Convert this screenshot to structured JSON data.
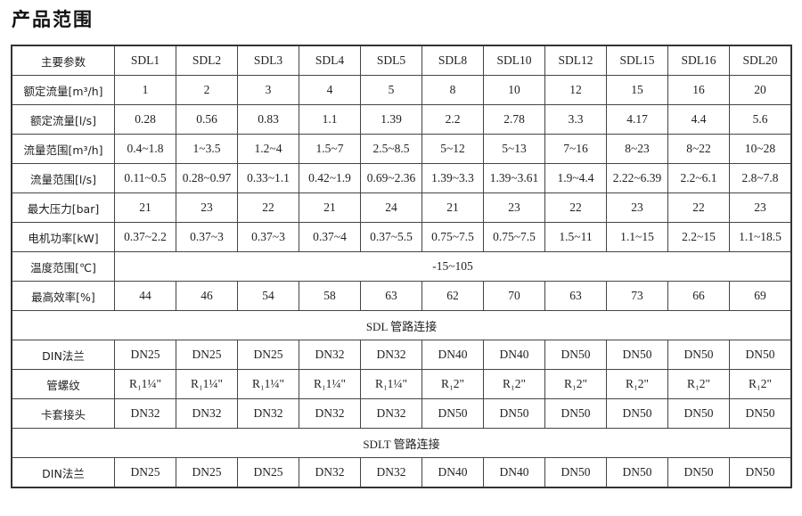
{
  "title": "产品范围",
  "header": {
    "label": "主要参数",
    "models": [
      "SDL1",
      "SDL2",
      "SDL3",
      "SDL4",
      "SDL5",
      "SDL8",
      "SDL10",
      "SDL12",
      "SDL15",
      "SDL16",
      "SDL20"
    ]
  },
  "rows": [
    {
      "label": "额定流量[m³/h]",
      "values": [
        "1",
        "2",
        "3",
        "4",
        "5",
        "8",
        "10",
        "12",
        "15",
        "16",
        "20"
      ]
    },
    {
      "label": "额定流量[l/s]",
      "values": [
        "0.28",
        "0.56",
        "0.83",
        "1.1",
        "1.39",
        "2.2",
        "2.78",
        "3.3",
        "4.17",
        "4.4",
        "5.6"
      ]
    },
    {
      "label": "流量范围[m³/h]",
      "values": [
        "0.4~1.8",
        "1~3.5",
        "1.2~4",
        "1.5~7",
        "2.5~8.5",
        "5~12",
        "5~13",
        "7~16",
        "8~23",
        "8~22",
        "10~28"
      ]
    },
    {
      "label": "流量范围[l/s]",
      "values": [
        "0.11~0.5",
        "0.28~0.97",
        "0.33~1.1",
        "0.42~1.9",
        "0.69~2.36",
        "1.39~3.3",
        "1.39~3.61",
        "1.9~4.4",
        "2.22~6.39",
        "2.2~6.1",
        "2.8~7.8"
      ]
    },
    {
      "label": "最大压力[bar]",
      "values": [
        "21",
        "23",
        "22",
        "21",
        "24",
        "21",
        "23",
        "22",
        "23",
        "22",
        "23"
      ]
    },
    {
      "label": "电机功率[kW]",
      "values": [
        "0.37~2.2",
        "0.37~3",
        "0.37~3",
        "0.37~4",
        "0.37~5.5",
        "0.75~7.5",
        "0.75~7.5",
        "1.5~11",
        "1.1~15",
        "2.2~15",
        "1.1~18.5"
      ]
    }
  ],
  "temperature": {
    "label": "温度范围[℃]",
    "value": "-15~105"
  },
  "efficiency": {
    "label": "最高效率[%]",
    "values": [
      "44",
      "46",
      "54",
      "58",
      "63",
      "62",
      "70",
      "63",
      "73",
      "66",
      "69"
    ]
  },
  "sdl_section": {
    "title": "SDL 管路连接",
    "rows": [
      {
        "label": "DIN法兰",
        "values": [
          "DN25",
          "DN25",
          "DN25",
          "DN32",
          "DN32",
          "DN40",
          "DN40",
          "DN50",
          "DN50",
          "DN50",
          "DN50"
        ]
      },
      {
        "label": "管螺纹",
        "values": [
          "R₁1¼\"",
          "R₁1¼\"",
          "R₁1¼\"",
          "R₁1¼\"",
          "R₁1¼\"",
          "R₁2\"",
          "R₁2\"",
          "R₁2\"",
          "R₁2\"",
          "R₁2\"",
          "R₁2\""
        ]
      },
      {
        "label": "卡套接头",
        "values": [
          "DN32",
          "DN32",
          "DN32",
          "DN32",
          "DN32",
          "DN50",
          "DN50",
          "DN50",
          "DN50",
          "DN50",
          "DN50"
        ]
      }
    ]
  },
  "sdlt_section": {
    "title": "SDLT 管路连接",
    "rows": [
      {
        "label": "DIN法兰",
        "values": [
          "DN25",
          "DN25",
          "DN25",
          "DN32",
          "DN32",
          "DN40",
          "DN40",
          "DN50",
          "DN50",
          "DN50",
          "DN50"
        ]
      }
    ]
  }
}
